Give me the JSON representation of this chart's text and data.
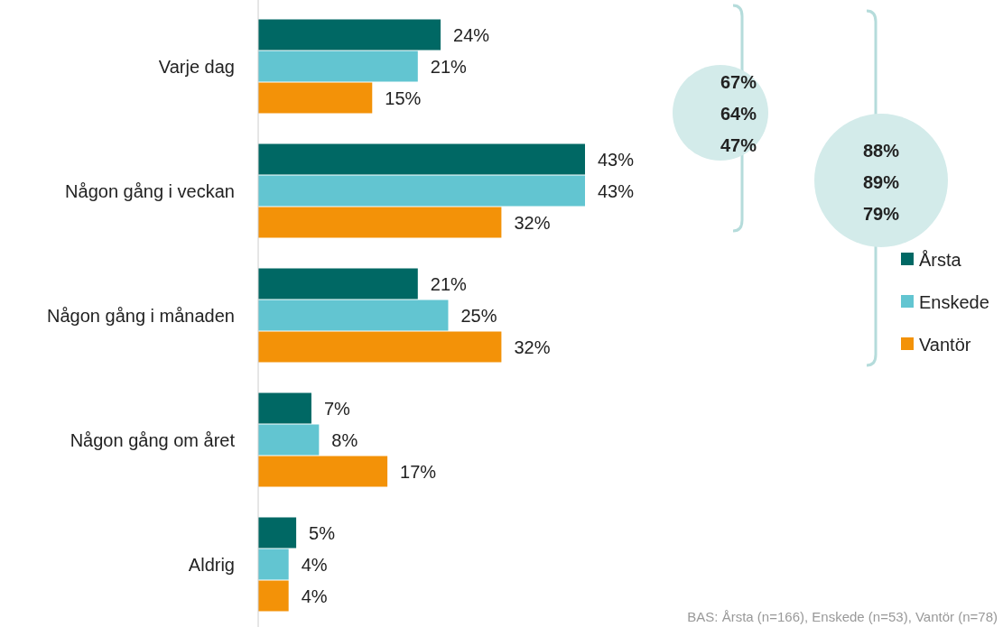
{
  "chart_data": {
    "type": "bar",
    "orientation": "horizontal",
    "categories": [
      "Varje dag",
      "Någon gång i veckan",
      "Någon gång i månaden",
      "Någon gång om året",
      "Aldrig"
    ],
    "series": [
      {
        "name": "Årsta",
        "color": "#006864",
        "values": [
          24,
          43,
          21,
          7,
          5
        ],
        "value_labels": [
          "24%",
          "43%",
          "21%",
          "7%",
          "5%"
        ]
      },
      {
        "name": "Enskede",
        "color": "#62c5d1",
        "values": [
          21,
          43,
          25,
          8,
          4
        ],
        "value_labels": [
          "21%",
          "43%",
          "25%",
          "8%",
          "4%"
        ]
      },
      {
        "name": "Vantör",
        "color": "#f39208",
        "values": [
          15,
          32,
          32,
          17,
          4
        ],
        "value_labels": [
          "15%",
          "32%",
          "32%",
          "17%",
          "4%"
        ]
      }
    ],
    "legend": "right",
    "annotations": [
      "67%",
      "64%",
      "47%",
      "88%",
      "89%",
      "79%",
      "BAS: Årsta (n=166), Enskede (n=53), Vantör (n=78)"
    ]
  }
}
